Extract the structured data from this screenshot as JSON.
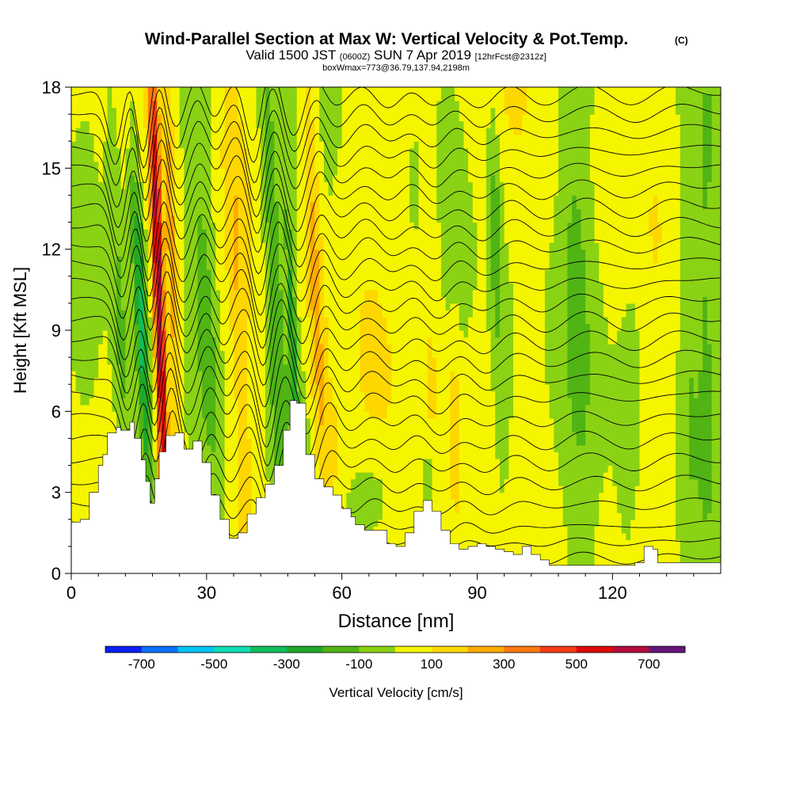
{
  "chart_data": {
    "type": "heatmap",
    "title": "Wind-Parallel Section at Max W: Vertical Velocity & Pot.Temp.",
    "title_mark": "(C)",
    "subtitle": {
      "valid_label": "Valid 1500 JST",
      "utc": "(0600Z)",
      "date": "SUN 7 Apr 2019",
      "forecast": "[12hrFcst@2312z]"
    },
    "box_info": "boxWmax=773@36.79,137.94,2198m",
    "xlabel": "Distance [nm]",
    "ylabel": "Height [Kft MSL]",
    "xlim": [
      0,
      144
    ],
    "ylim": [
      0,
      18
    ],
    "x_ticks": [
      0,
      30,
      60,
      90,
      120
    ],
    "y_ticks": [
      0,
      3,
      6,
      9,
      12,
      15,
      18
    ],
    "x_tick_labels": [
      "0",
      "30",
      "60",
      "90",
      "120"
    ],
    "y_tick_labels": [
      "0",
      "3",
      "6",
      "9",
      "12",
      "15",
      "18"
    ],
    "colorbar": {
      "label": "Vertical Velocity [cm/s]",
      "levels": [
        -800,
        -700,
        -600,
        -500,
        -400,
        -300,
        -200,
        -100,
        0,
        100,
        200,
        300,
        400,
        500,
        600,
        700,
        800
      ],
      "colors": [
        "#0a1ef5",
        "#0a6eff",
        "#00c3f5",
        "#10dcb4",
        "#0fbe5a",
        "#20a828",
        "#50b414",
        "#8ad214",
        "#f5f500",
        "#ffd700",
        "#ffaa00",
        "#ff7810",
        "#f53c14",
        "#dc0a0a",
        "#b40a3c",
        "#641478"
      ],
      "tick_values": [
        -700,
        -500,
        -300,
        -100,
        100,
        300,
        500,
        700
      ],
      "tick_labels": [
        "-700",
        "-500",
        "-300",
        "-100",
        "100",
        "300",
        "500",
        "700"
      ]
    },
    "terrain_kft": [
      [
        0,
        1.9
      ],
      [
        2,
        2.0
      ],
      [
        4,
        3.0
      ],
      [
        6,
        4.0
      ],
      [
        7,
        4.4
      ],
      [
        8,
        5.2
      ],
      [
        10,
        5.4
      ],
      [
        11,
        5.3
      ],
      [
        13,
        5.6
      ],
      [
        14,
        5.0
      ],
      [
        15.5,
        4.2
      ],
      [
        16.5,
        3.4
      ],
      [
        17.5,
        2.6
      ],
      [
        18.5,
        3.5
      ],
      [
        19.5,
        4.5
      ],
      [
        21,
        5.1
      ],
      [
        23,
        5.2
      ],
      [
        25,
        4.6
      ],
      [
        27,
        4.9
      ],
      [
        29,
        4.1
      ],
      [
        31,
        2.9
      ],
      [
        33,
        2.0
      ],
      [
        35,
        1.3
      ],
      [
        37,
        1.5
      ],
      [
        39,
        2.2
      ],
      [
        41,
        2.8
      ],
      [
        43,
        3.3
      ],
      [
        45,
        4.0
      ],
      [
        47,
        5.3
      ],
      [
        48.5,
        6.4
      ],
      [
        50,
        6.3
      ],
      [
        52,
        4.4
      ],
      [
        54,
        3.5
      ],
      [
        56,
        3.2
      ],
      [
        58,
        2.9
      ],
      [
        60,
        2.4
      ],
      [
        62,
        2.1
      ],
      [
        63,
        1.8
      ],
      [
        65,
        1.6
      ],
      [
        67,
        1.6
      ],
      [
        70,
        1.1
      ],
      [
        72,
        1.0
      ],
      [
        74,
        1.5
      ],
      [
        76,
        2.3
      ],
      [
        78,
        2.7
      ],
      [
        80,
        2.3
      ],
      [
        82,
        1.6
      ],
      [
        84,
        1.1
      ],
      [
        86,
        0.9
      ],
      [
        88,
        1.0
      ],
      [
        90,
        1.1
      ],
      [
        92,
        1.0
      ],
      [
        94,
        0.9
      ],
      [
        96,
        0.8
      ],
      [
        98,
        0.7
      ],
      [
        100,
        1.0
      ],
      [
        102,
        0.7
      ],
      [
        104,
        0.5
      ],
      [
        106,
        0.3
      ],
      [
        108,
        0.3
      ],
      [
        115,
        0.3
      ],
      [
        125,
        0.4
      ],
      [
        127,
        1.0
      ],
      [
        129,
        0.9
      ],
      [
        130,
        0.4
      ],
      [
        144,
        0.4
      ]
    ],
    "w_features": [
      {
        "x": 11,
        "y": 8.0,
        "value": -160,
        "sx": 2.2,
        "sy": 14,
        "tilt": -0.22
      },
      {
        "x": 15.5,
        "y": 9.0,
        "value": -340,
        "sx": 1.3,
        "sy": 7,
        "tilt": -0.28
      },
      {
        "x": 19.5,
        "y": 9.5,
        "value": 720,
        "sx": 1.2,
        "sy": 11,
        "tilt": -0.18
      },
      {
        "x": 22.5,
        "y": 10.0,
        "value": 260,
        "sx": 1.6,
        "sy": 11,
        "tilt": -0.18
      },
      {
        "x": 30,
        "y": 10.0,
        "value": -160,
        "sx": 2.8,
        "sy": 11,
        "tilt": -0.26
      },
      {
        "x": 37,
        "y": 10.0,
        "value": 110,
        "sx": 1.6,
        "sy": 12,
        "tilt": -0.25
      },
      {
        "x": 45,
        "y": 10.5,
        "value": -220,
        "sx": 2.2,
        "sy": 10,
        "tilt": -0.24
      },
      {
        "x": 49,
        "y": 9.0,
        "value": -260,
        "sx": 0.9,
        "sy": 5,
        "tilt": -0.25
      },
      {
        "x": 54,
        "y": 11.0,
        "value": 230,
        "sx": 2.0,
        "sy": 11,
        "tilt": -0.22
      },
      {
        "x": 58,
        "y": 4.5,
        "value": 110,
        "sx": 2.5,
        "sy": 3,
        "tilt": -0.3
      },
      {
        "x": 66,
        "y": 2.8,
        "value": -110,
        "sx": 5.0,
        "sy": 1.6,
        "tilt": 0.5
      },
      {
        "x": 79,
        "y": 3.5,
        "value": -190,
        "sx": 1.0,
        "sy": 0.9,
        "tilt": 0
      },
      {
        "x": 85,
        "y": 5.0,
        "value": 160,
        "sx": 1.4,
        "sy": 4,
        "tilt": -0.05
      },
      {
        "x": 80,
        "y": 9.0,
        "value": 110,
        "sx": 2.5,
        "sy": 8,
        "tilt": -0.05
      },
      {
        "x": 94,
        "y": 13.0,
        "value": -190,
        "sx": 1.6,
        "sy": 5,
        "tilt": -0.12
      },
      {
        "x": 96,
        "y": 5.0,
        "value": -120,
        "sx": 3.0,
        "sy": 7,
        "tilt": 0.05
      },
      {
        "x": 112,
        "y": 11.0,
        "value": -110,
        "sx": 3.0,
        "sy": 9,
        "tilt": -0.12
      },
      {
        "x": 124,
        "y": 6.0,
        "value": -100,
        "sx": 3.0,
        "sy": 9,
        "tilt": 0.12
      },
      {
        "x": 137,
        "y": 9.0,
        "value": -100,
        "sx": 2.5,
        "sy": 9,
        "tilt": 0
      },
      {
        "x": 141,
        "y": 10.0,
        "value": -100,
        "sx": 2.0,
        "sy": 9,
        "tilt": 0
      },
      {
        "x": 4,
        "y": 12.0,
        "value": -100,
        "sx": 4.0,
        "sy": 12,
        "tilt": 0
      }
    ],
    "theta_contours": {
      "base_heights_kft": [
        0.6,
        1.2,
        1.8,
        2.6,
        3.4,
        4.2,
        5.0,
        5.8,
        6.6,
        7.3,
        8.0,
        8.7,
        9.4,
        10.1,
        10.8,
        11.5,
        12.2,
        12.9,
        13.6,
        14.3,
        15.0,
        15.7,
        16.4,
        17.1,
        17.8
      ],
      "wave_x": [
        15,
        20,
        28,
        36,
        45,
        54,
        62,
        72,
        82,
        92,
        105,
        125
      ],
      "wave_amp_kft": [
        2.4,
        3.0,
        1.6,
        1.2,
        2.2,
        1.8,
        0.7,
        0.6,
        0.8,
        0.7,
        0.5,
        0.4
      ],
      "wave_width_nm": [
        2.5,
        2.2,
        3.0,
        3.0,
        2.5,
        3.0,
        4.0,
        4.0,
        4.0,
        5.0,
        6.0,
        6.0
      ],
      "wave_phase_tilt": [
        0.25,
        0.2,
        0.22,
        0.22,
        0.22,
        0.22,
        0.15,
        0.1,
        0.1,
        0.1,
        0.05,
        0.05
      ]
    },
    "grid": false
  }
}
